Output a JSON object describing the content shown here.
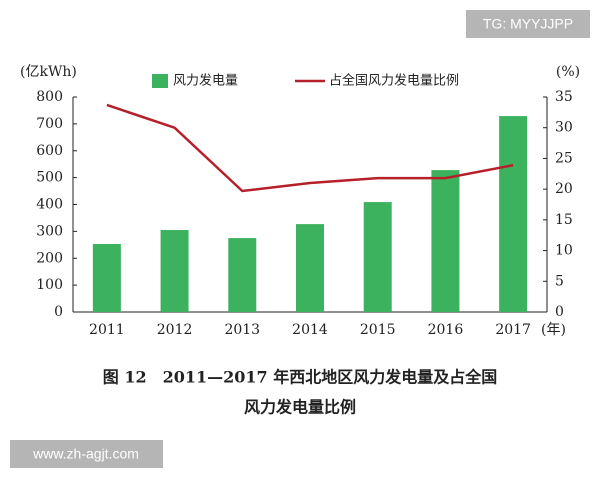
{
  "chart_data": {
    "type": "bar-line",
    "ylabel": "(亿kWh)",
    "y2label": "(%)",
    "xlabel": "(年)",
    "caption": [
      "图 12　2011—2017 年西北地区风力发电量及占全国",
      "风力发电量比例"
    ],
    "categories": [
      "2011",
      "2012",
      "2013",
      "2014",
      "2015",
      "2016",
      "2017"
    ],
    "series": [
      {
        "name": "风力发电量",
        "type": "bar",
        "color": "#3db25e",
        "values": [
          253,
          305,
          275,
          327,
          409,
          528,
          729
        ]
      },
      {
        "name": "占全国风力发电量比例",
        "type": "line",
        "axis": "y2",
        "color": "#b5202a",
        "values": [
          33.7,
          30.0,
          19.7,
          21.0,
          21.8,
          21.8,
          23.9
        ]
      }
    ],
    "ylim": [
      0,
      800
    ],
    "yticks": [
      0,
      100,
      200,
      300,
      400,
      500,
      600,
      700,
      800
    ],
    "y2lim": [
      0,
      35
    ],
    "y2ticks": [
      0,
      5,
      10,
      15,
      20,
      25,
      30,
      35
    ]
  },
  "watermarks": [
    "TG: MYYJJPP",
    "www.zh-agjt.com"
  ]
}
